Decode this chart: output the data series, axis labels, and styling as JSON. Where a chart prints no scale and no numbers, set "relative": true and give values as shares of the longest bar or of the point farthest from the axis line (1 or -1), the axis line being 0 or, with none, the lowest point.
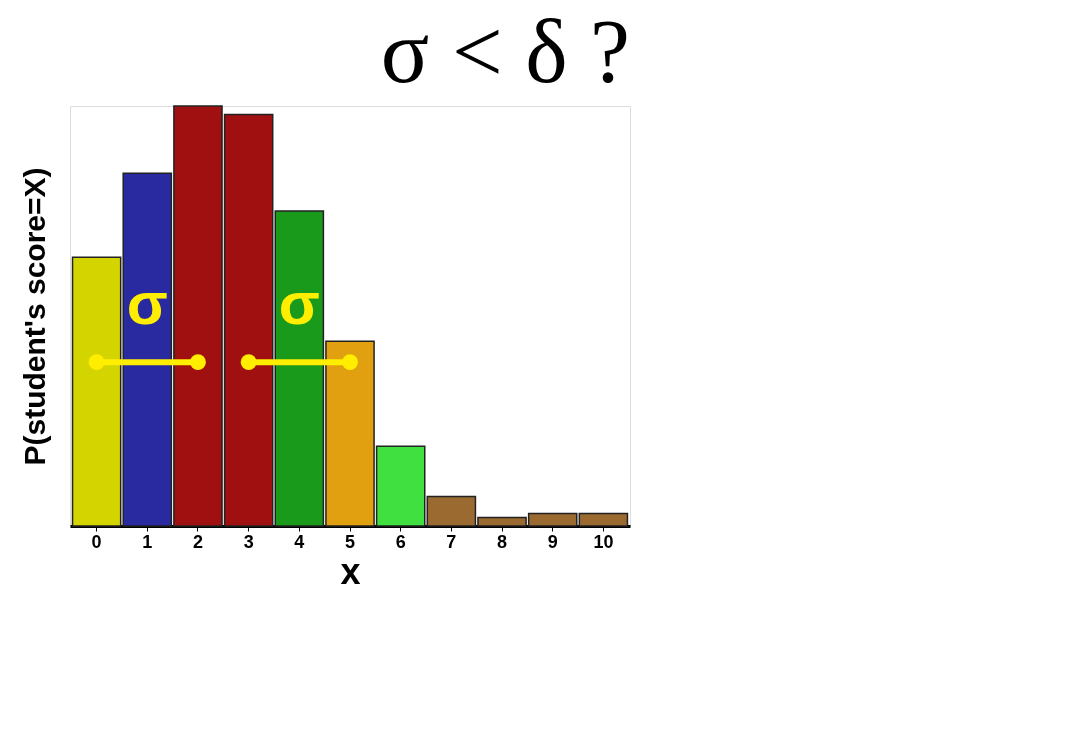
{
  "chart_data": {
    "type": "bar",
    "title": "σ < δ ?",
    "xlabel": "x",
    "ylabel": "P(student's score=X)",
    "relative": true,
    "grid": false,
    "categories": [
      "0",
      "1",
      "2",
      "3",
      "4",
      "5",
      "6",
      "7",
      "8",
      "9",
      "10"
    ],
    "values": [
      0.64,
      0.84,
      1,
      0.98,
      0.75,
      0.44,
      0.19,
      0.07,
      0.02,
      0.03,
      0.03
    ],
    "colors": [
      "#d4d400",
      "#2a2aa0",
      "#a01010",
      "#a01010",
      "#1a9a1a",
      "#e0a010",
      "#40e040",
      "#9a6a30",
      "#9a6a30",
      "#9a6a30",
      "#9a6a30"
    ],
    "series": [
      {
        "type": "line",
        "color": "#ffee00",
        "marker": "circle",
        "x": [
          "0",
          "2"
        ],
        "values": [
          0.39,
          0.39
        ]
      },
      {
        "type": "line",
        "color": "#ffee00",
        "marker": "circle",
        "x": [
          "3",
          "5"
        ],
        "values": [
          0.39,
          0.39
        ]
      }
    ],
    "annotations": [
      "σ",
      "σ"
    ]
  }
}
